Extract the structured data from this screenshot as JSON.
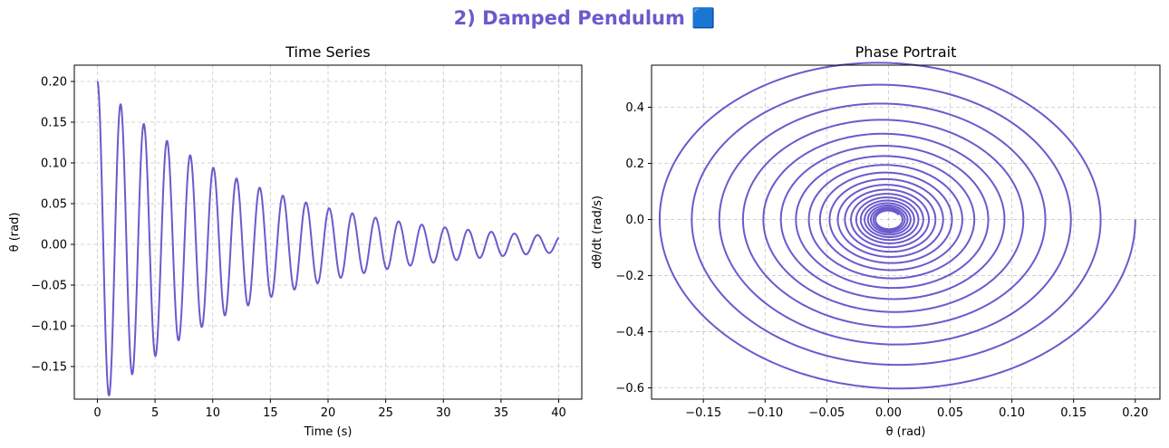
{
  "suptitle": "2) Damped Pendulum 🟦",
  "accent_color": "#6a5acd",
  "chart_data": [
    {
      "type": "line",
      "title": "Time Series",
      "xlabel": "Time (s)",
      "ylabel": "θ (rad)",
      "xlim": [
        -2,
        42
      ],
      "ylim": [
        -0.19,
        0.22
      ],
      "xticks": [
        "0",
        "5",
        "10",
        "15",
        "20",
        "25",
        "30",
        "35",
        "40"
      ],
      "yticks": [
        "−0.15",
        "−0.10",
        "−0.05",
        "0.00",
        "0.05",
        "0.10",
        "0.15",
        "0.20"
      ],
      "grid": true,
      "series": [
        {
          "model": {
            "theta0": 0.2,
            "omega0": 0.0,
            "damping": 0.15,
            "omega_natural": 3.13,
            "t_start": 0,
            "t_end": 40
          }
        }
      ]
    },
    {
      "type": "line",
      "title": "Phase Portrait",
      "xlabel": "θ (rad)",
      "ylabel": "dθ/dt (rad/s)",
      "xlim": [
        -0.192,
        0.22
      ],
      "ylim": [
        -0.64,
        0.55
      ],
      "xticks": [
        "−0.15",
        "−0.10",
        "−0.05",
        "0.00",
        "0.05",
        "0.10",
        "0.15",
        "0.20"
      ],
      "yticks": [
        "−0.6",
        "−0.4",
        "−0.2",
        "0.0",
        "0.2",
        "0.4"
      ],
      "grid": true,
      "series": [
        {
          "model": {
            "theta0": 0.2,
            "omega0": 0.0,
            "damping": 0.15,
            "omega_natural": 3.13,
            "t_start": 0,
            "t_end": 40
          }
        }
      ]
    }
  ]
}
